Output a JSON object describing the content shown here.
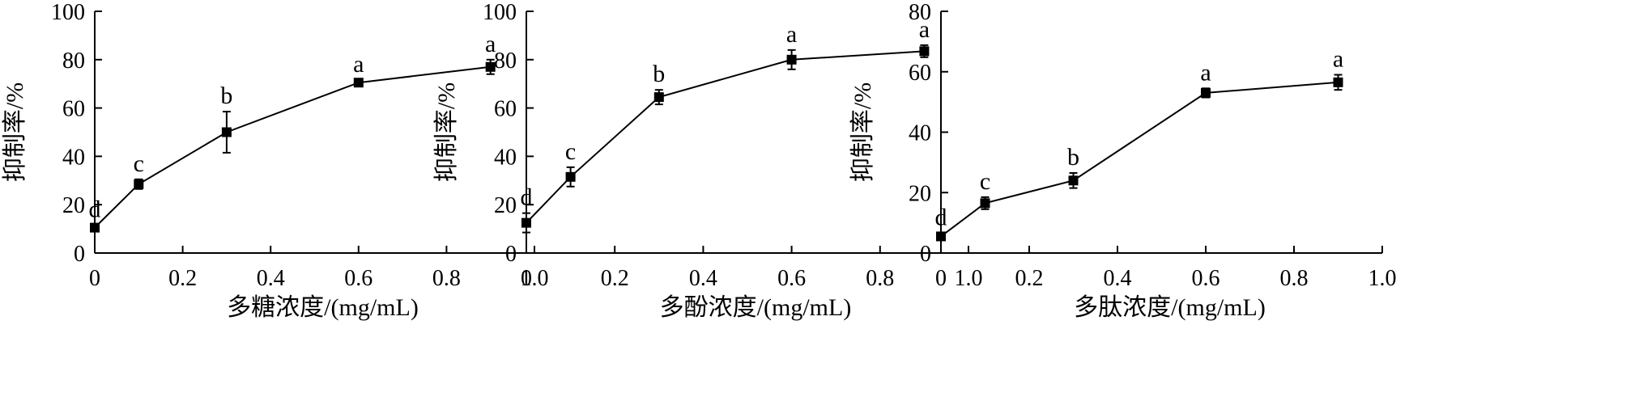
{
  "chart_data": [
    {
      "type": "line",
      "xlabel": "多糖浓度/(mg/mL)",
      "ylabel": "抑制率/%",
      "xlim": [
        0,
        1.0
      ],
      "ylim": [
        0,
        100
      ],
      "xticks": [
        0,
        0.2,
        0.4,
        0.6,
        0.8,
        1.0
      ],
      "xtick_labels": [
        "0",
        "0.2",
        "0.4",
        "0.6",
        "0.8",
        "1.0"
      ],
      "yticks": [
        0,
        20,
        40,
        60,
        80,
        100
      ],
      "ytick_labels": [
        "0",
        "20",
        "40",
        "60",
        "80",
        "100"
      ],
      "grid": false,
      "series": [
        {
          "x": [
            0,
            0.1,
            0.3,
            0.6,
            0.9
          ],
          "y": [
            10.5,
            28.5,
            50.0,
            70.5,
            77.0
          ],
          "error": [
            1.0,
            2.0,
            8.5,
            1.0,
            3.0
          ],
          "labels": [
            "d",
            "c",
            "b",
            "a",
            "a"
          ]
        }
      ]
    },
    {
      "type": "line",
      "xlabel": "多酚浓度/(mg/mL)",
      "ylabel": "抑制率/%",
      "xlim": [
        0,
        1.0
      ],
      "ylim": [
        0,
        100
      ],
      "xticks": [
        0,
        0.2,
        0.4,
        0.6,
        0.8,
        1.0
      ],
      "xtick_labels": [
        "0",
        "0.2",
        "0.4",
        "0.6",
        "0.8",
        "1.0"
      ],
      "yticks": [
        0,
        20,
        40,
        60,
        80,
        100
      ],
      "ytick_labels": [
        "0",
        "20",
        "40",
        "60",
        "80",
        "100"
      ],
      "grid": false,
      "series": [
        {
          "x": [
            0,
            0.1,
            0.3,
            0.6,
            0.9
          ],
          "y": [
            12.5,
            31.5,
            64.5,
            80.0,
            83.5
          ],
          "error": [
            4.0,
            4.0,
            3.0,
            4.0,
            2.5
          ],
          "labels": [
            "d",
            "c",
            "b",
            "a",
            "a"
          ]
        }
      ]
    },
    {
      "type": "line",
      "xlabel": "多肽浓度/(mg/mL)",
      "ylabel": "抑制率/%",
      "xlim": [
        0,
        1.0
      ],
      "ylim": [
        0,
        80
      ],
      "xticks": [
        0,
        0.2,
        0.4,
        0.6,
        0.8,
        1.0
      ],
      "xtick_labels": [
        "0",
        "0.2",
        "0.4",
        "0.6",
        "0.8",
        "1.0"
      ],
      "yticks": [
        0,
        20,
        40,
        60,
        80
      ],
      "ytick_labels": [
        "0",
        "20",
        "40",
        "60",
        "80"
      ],
      "grid": false,
      "series": [
        {
          "x": [
            0,
            0.1,
            0.3,
            0.6,
            0.9
          ],
          "y": [
            5.5,
            16.5,
            24.0,
            53.0,
            56.5
          ],
          "error": [
            1.0,
            2.0,
            2.5,
            1.5,
            2.5
          ],
          "labels": [
            "d",
            "c",
            "b",
            "a",
            "a"
          ]
        }
      ]
    }
  ]
}
